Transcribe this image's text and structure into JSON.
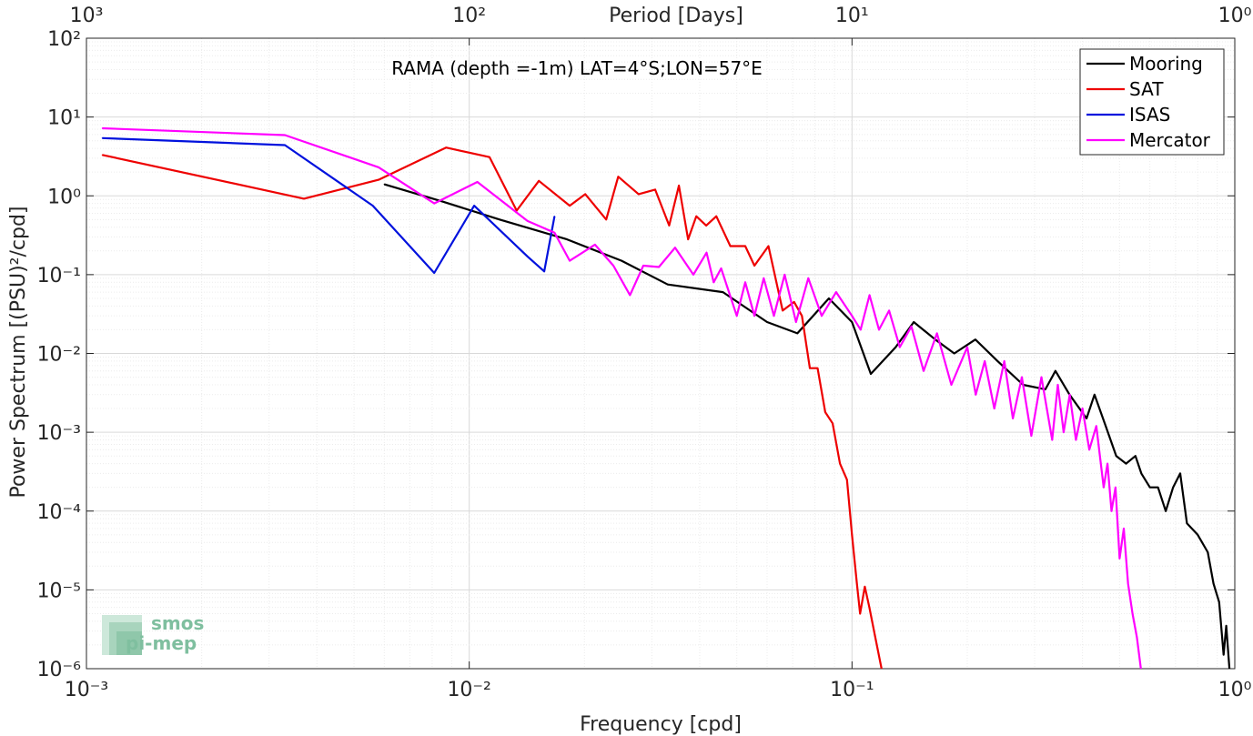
{
  "chart_data": {
    "type": "line",
    "xscale": "log",
    "yscale": "log",
    "xlim": [
      0.001,
      1
    ],
    "ylim": [
      1e-06,
      100
    ],
    "xlabel": "Frequency [cpd]",
    "ylabel": "Power Spectrum [(PSU)²/cpd]",
    "top_axis_label": "Period [Days]",
    "annotation": "RAMA (depth =-1m) LAT=4°S;LON=57°E",
    "x_tick_labels": [
      "10⁻³",
      "10⁻²",
      "10⁻¹",
      "10⁰"
    ],
    "y_tick_labels": [
      "10⁻⁶",
      "10⁻⁵",
      "10⁻⁴",
      "10⁻³",
      "10⁻²",
      "10⁻¹",
      "10⁰",
      "10¹",
      "10²"
    ],
    "top_tick_labels": [
      "10³",
      "10²",
      "10¹",
      "10⁰"
    ],
    "grid": true,
    "legend_position": "top-right",
    "series": [
      {
        "name": "Mooring",
        "color": "#000000",
        "points": [
          [
            0.006,
            1.4
          ],
          [
            0.0085,
            0.85
          ],
          [
            0.012,
            0.5
          ],
          [
            0.018,
            0.28
          ],
          [
            0.025,
            0.15
          ],
          [
            0.033,
            0.075
          ],
          [
            0.046,
            0.06
          ],
          [
            0.06,
            0.025
          ],
          [
            0.072,
            0.018
          ],
          [
            0.087,
            0.05
          ],
          [
            0.1,
            0.025
          ],
          [
            0.112,
            0.0055
          ],
          [
            0.13,
            0.012
          ],
          [
            0.145,
            0.025
          ],
          [
            0.165,
            0.015
          ],
          [
            0.185,
            0.01
          ],
          [
            0.21,
            0.015
          ],
          [
            0.24,
            0.008
          ],
          [
            0.28,
            0.004
          ],
          [
            0.32,
            0.0035
          ],
          [
            0.34,
            0.006
          ],
          [
            0.37,
            0.003
          ],
          [
            0.41,
            0.0015
          ],
          [
            0.43,
            0.003
          ],
          [
            0.46,
            0.0012
          ],
          [
            0.49,
            0.0005
          ],
          [
            0.52,
            0.0004
          ],
          [
            0.55,
            0.0005
          ],
          [
            0.57,
            0.0003
          ],
          [
            0.6,
            0.0002
          ],
          [
            0.63,
            0.0002
          ],
          [
            0.66,
            0.0001
          ],
          [
            0.69,
            0.0002
          ],
          [
            0.72,
            0.0003
          ],
          [
            0.75,
            7e-05
          ],
          [
            0.8,
            5e-05
          ],
          [
            0.85,
            3e-05
          ],
          [
            0.88,
            1.2e-05
          ],
          [
            0.91,
            7e-06
          ],
          [
            0.935,
            1.5e-06
          ],
          [
            0.95,
            3.5e-06
          ],
          [
            0.97,
            9e-07
          ]
        ]
      },
      {
        "name": "SAT",
        "color": "#ee0000",
        "points": [
          [
            0.0011,
            3.3
          ],
          [
            0.0037,
            0.92
          ],
          [
            0.0058,
            1.6
          ],
          [
            0.0087,
            4.1
          ],
          [
            0.0113,
            3.1
          ],
          [
            0.0133,
            0.65
          ],
          [
            0.0152,
            1.55
          ],
          [
            0.0183,
            0.75
          ],
          [
            0.0201,
            1.05
          ],
          [
            0.0228,
            0.5
          ],
          [
            0.0245,
            1.75
          ],
          [
            0.0277,
            1.05
          ],
          [
            0.0306,
            1.2
          ],
          [
            0.0333,
            0.42
          ],
          [
            0.0353,
            1.35
          ],
          [
            0.0373,
            0.28
          ],
          [
            0.0392,
            0.55
          ],
          [
            0.0416,
            0.42
          ],
          [
            0.0442,
            0.55
          ],
          [
            0.0481,
            0.23
          ],
          [
            0.0526,
            0.23
          ],
          [
            0.0556,
            0.13
          ],
          [
            0.0605,
            0.23
          ],
          [
            0.0659,
            0.035
          ],
          [
            0.0706,
            0.045
          ],
          [
            0.074,
            0.03
          ],
          [
            0.0776,
            0.0065
          ],
          [
            0.0813,
            0.0065
          ],
          [
            0.0851,
            0.0018
          ],
          [
            0.089,
            0.0013
          ],
          [
            0.093,
            0.0004
          ],
          [
            0.097,
            0.00025
          ],
          [
            0.1,
            5e-05
          ],
          [
            0.103,
            1.2e-05
          ],
          [
            0.105,
            5e-06
          ],
          [
            0.108,
            1.1e-05
          ],
          [
            0.111,
            6e-06
          ],
          [
            0.115,
            2.5e-06
          ],
          [
            0.12,
            9e-07
          ]
        ]
      },
      {
        "name": "ISAS",
        "color": "#0011dd",
        "points": [
          [
            0.0011,
            5.4
          ],
          [
            0.0033,
            4.4
          ],
          [
            0.0056,
            0.75
          ],
          [
            0.0081,
            0.105
          ],
          [
            0.0103,
            0.75
          ],
          [
            0.0142,
            0.17
          ],
          [
            0.0157,
            0.11
          ],
          [
            0.0167,
            0.55
          ]
        ]
      },
      {
        "name": "Mercator",
        "color": "#ff00ff",
        "points": [
          [
            0.0011,
            7.2
          ],
          [
            0.0033,
            5.9
          ],
          [
            0.0058,
            2.3
          ],
          [
            0.0081,
            0.8
          ],
          [
            0.0105,
            1.5
          ],
          [
            0.0142,
            0.48
          ],
          [
            0.0167,
            0.34
          ],
          [
            0.0183,
            0.15
          ],
          [
            0.0213,
            0.24
          ],
          [
            0.0238,
            0.13
          ],
          [
            0.0263,
            0.055
          ],
          [
            0.0285,
            0.13
          ],
          [
            0.0313,
            0.125
          ],
          [
            0.0345,
            0.22
          ],
          [
            0.0385,
            0.1
          ],
          [
            0.0417,
            0.19
          ],
          [
            0.0435,
            0.08
          ],
          [
            0.0455,
            0.12
          ],
          [
            0.05,
            0.03
          ],
          [
            0.0526,
            0.08
          ],
          [
            0.0556,
            0.03
          ],
          [
            0.0588,
            0.09
          ],
          [
            0.0625,
            0.03
          ],
          [
            0.0667,
            0.1
          ],
          [
            0.0714,
            0.025
          ],
          [
            0.0769,
            0.09
          ],
          [
            0.0833,
            0.03
          ],
          [
            0.0909,
            0.06
          ],
          [
            0.1,
            0.03
          ],
          [
            0.1053,
            0.02
          ],
          [
            0.1111,
            0.055
          ],
          [
            0.1176,
            0.02
          ],
          [
            0.125,
            0.035
          ],
          [
            0.1333,
            0.012
          ],
          [
            0.1429,
            0.022
          ],
          [
            0.1538,
            0.006
          ],
          [
            0.1667,
            0.018
          ],
          [
            0.1818,
            0.004
          ],
          [
            0.2,
            0.012
          ],
          [
            0.2105,
            0.003
          ],
          [
            0.2222,
            0.008
          ],
          [
            0.2353,
            0.002
          ],
          [
            0.25,
            0.008
          ],
          [
            0.2632,
            0.0015
          ],
          [
            0.2778,
            0.005
          ],
          [
            0.2941,
            0.0009
          ],
          [
            0.3125,
            0.005
          ],
          [
            0.3333,
            0.0008
          ],
          [
            0.3448,
            0.004
          ],
          [
            0.3571,
            0.001
          ],
          [
            0.3704,
            0.003
          ],
          [
            0.3846,
            0.0008
          ],
          [
            0.4,
            0.002
          ],
          [
            0.4167,
            0.0006
          ],
          [
            0.4348,
            0.0012
          ],
          [
            0.4545,
            0.0002
          ],
          [
            0.4651,
            0.0004
          ],
          [
            0.4762,
            0.0001
          ],
          [
            0.4878,
            0.0002
          ],
          [
            0.5,
            2.5e-05
          ],
          [
            0.5128,
            6e-05
          ],
          [
            0.5263,
            1.2e-05
          ],
          [
            0.5405,
            5e-06
          ],
          [
            0.555,
            2.5e-06
          ],
          [
            0.57,
            9e-07
          ]
        ]
      }
    ]
  },
  "logo": {
    "line1": "smos",
    "line2": "pi-mep"
  }
}
